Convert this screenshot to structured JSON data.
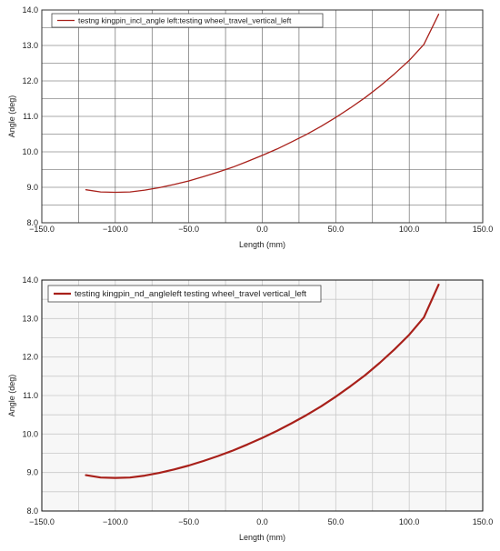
{
  "chart_data": [
    {
      "type": "line",
      "xlabel": "Length (mm)",
      "ylabel": "Angle (deg)",
      "xlim": [
        -150,
        150
      ],
      "ylim": [
        8,
        14
      ],
      "grid": true,
      "legend_position": "top-left",
      "x_ticks": [
        "-150.0",
        "-100.0",
        "-50.0",
        "0.0",
        "50.0",
        "100.0",
        "150.0"
      ],
      "y_ticks": [
        "8.0",
        "9.0",
        "10.0",
        "11.0",
        "12.0",
        "13.0",
        "14.0"
      ],
      "series": [
        {
          "name": "testng kingpin_incl_angle left:testing wheel_travel_vertical_left",
          "color": "#a8201a",
          "x": [
            -120,
            -110,
            -100,
            -90,
            -80,
            -70,
            -60,
            -50,
            -40,
            -30,
            -20,
            -10,
            0,
            10,
            20,
            30,
            40,
            50,
            60,
            70,
            80,
            90,
            100,
            110,
            120
          ],
          "y": [
            8.93,
            8.87,
            8.86,
            8.87,
            8.92,
            8.99,
            9.08,
            9.18,
            9.3,
            9.43,
            9.57,
            9.73,
            9.9,
            10.08,
            10.28,
            10.49,
            10.72,
            10.97,
            11.24,
            11.53,
            11.85,
            12.2,
            12.58,
            13.03,
            13.88
          ]
        }
      ]
    },
    {
      "type": "line",
      "xlabel": "Length (mm)",
      "ylabel": "Angle (deg)",
      "xlim": [
        -150,
        150
      ],
      "ylim": [
        8,
        14
      ],
      "grid": true,
      "legend_position": "top-left",
      "x_ticks": [
        "-150.0",
        "-100.0",
        "-50.0",
        "0.0",
        "50.0",
        "100.0",
        "150.0"
      ],
      "y_ticks": [
        "8.0",
        "9.0",
        "10.0",
        "11.0",
        "12.0",
        "13.0",
        "14.0"
      ],
      "series": [
        {
          "name": "testing kingpin_nd_angleleft testing wheel_travel vertical_left",
          "color": "#a8201a",
          "x": [
            -120,
            -110,
            -100,
            -90,
            -80,
            -70,
            -60,
            -50,
            -40,
            -30,
            -20,
            -10,
            0,
            10,
            20,
            30,
            40,
            50,
            60,
            70,
            80,
            90,
            100,
            110,
            120
          ],
          "y": [
            8.93,
            8.87,
            8.86,
            8.87,
            8.92,
            8.99,
            9.08,
            9.18,
            9.3,
            9.43,
            9.57,
            9.73,
            9.9,
            10.08,
            10.28,
            10.49,
            10.72,
            10.97,
            11.24,
            11.53,
            11.85,
            12.2,
            12.58,
            13.03,
            13.88
          ]
        }
      ]
    }
  ]
}
